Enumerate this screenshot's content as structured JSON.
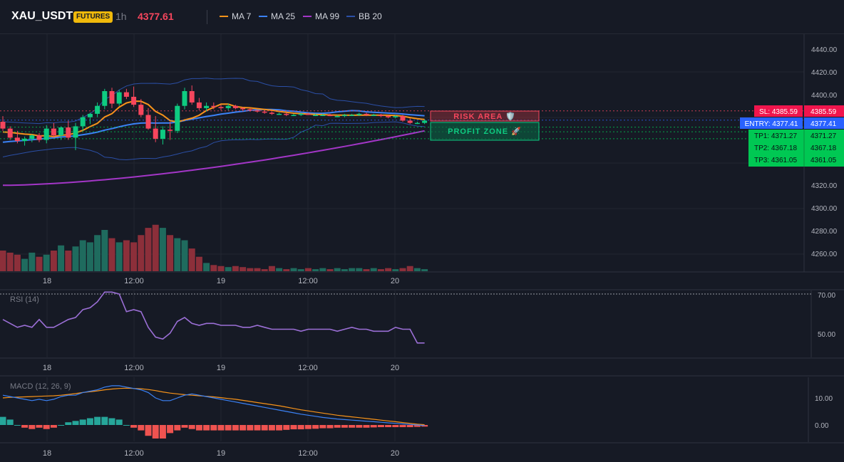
{
  "header": {
    "symbol": "XAU_USDT",
    "badge": "FUTURES",
    "interval": "1h",
    "price": "4377.61",
    "legend": [
      {
        "label": "MA 7",
        "color": "#f7931a"
      },
      {
        "label": "MA 25",
        "color": "#3b82f6"
      },
      {
        "label": "MA 99",
        "color": "#a336c7"
      },
      {
        "label": "BB 20",
        "color": "#2b4fa6"
      }
    ]
  },
  "colors": {
    "up": "#0ecb81",
    "down": "#f6465d",
    "vol_up": "#1f6b5e",
    "vol_down": "#8c2f3a",
    "ma7": "#f7931a",
    "ma25": "#3b82f6",
    "ma99": "#a336c7",
    "bb": "#2b4fa6",
    "rsi": "#9b6fd6",
    "macd": "#3b82f6",
    "signal": "#f7931a",
    "hist_up": "#26a69a",
    "hist_down": "#ef5350",
    "entry": "#2962ff",
    "tp": "#00c853"
  },
  "x_axis": {
    "tick_labels": [
      "18",
      "12:00",
      "19",
      "12:00",
      "20"
    ]
  },
  "main_axis": {
    "ticks": [
      "4440.00",
      "4420.00",
      "4400.00",
      "4320.00",
      "4300.00",
      "4280.00",
      "4260.00"
    ]
  },
  "levels": {
    "sl": {
      "label": "SL: 4385.59",
      "axis": "4385.59",
      "value": 4385.59
    },
    "entry": {
      "label": "ENTRY: 4377.41",
      "axis": "4377.41",
      "value": 4377.41
    },
    "tp1": {
      "label": "TP1: 4371.27",
      "axis": "4371.27",
      "value": 4371.27
    },
    "tp2": {
      "label": "TP2: 4367.18",
      "axis": "4367.18",
      "value": 4367.18
    },
    "tp3": {
      "label": "TP3: 4361.05",
      "axis": "4361.05",
      "value": 4361.05
    }
  },
  "zones": {
    "risk": "RISK AREA 🛡️",
    "profit": "PROFIT ZONE 🚀"
  },
  "rsi": {
    "title": "RSI (14)",
    "ticks": [
      "70.00",
      "50.00"
    ]
  },
  "macd": {
    "title": "MACD (12, 26, 9)",
    "ticks": [
      "10.00",
      "0.00"
    ]
  },
  "chart_data": [
    {
      "type": "candlestick",
      "title": "XAU_USDT",
      "ylim": [
        4245,
        4450
      ],
      "candles": [
        [
          4376,
          4381,
          4368,
          4370
        ],
        [
          4370,
          4372,
          4360,
          4362
        ],
        [
          4362,
          4368,
          4357,
          4359
        ],
        [
          4359,
          4363,
          4355,
          4361
        ],
        [
          4361,
          4365,
          4358,
          4364
        ],
        [
          4364,
          4366,
          4358,
          4360
        ],
        [
          4360,
          4373,
          4357,
          4370
        ],
        [
          4370,
          4375,
          4362,
          4364
        ],
        [
          4364,
          4372,
          4360,
          4371
        ],
        [
          4371,
          4377,
          4360,
          4362
        ],
        [
          4362,
          4375,
          4351,
          4372
        ],
        [
          4372,
          4382,
          4368,
          4380
        ],
        [
          4380,
          4384,
          4374,
          4383
        ],
        [
          4383,
          4393,
          4380,
          4390
        ],
        [
          4390,
          4405,
          4387,
          4403
        ],
        [
          4403,
          4406,
          4388,
          4392
        ],
        [
          4392,
          4404,
          4390,
          4402
        ],
        [
          4402,
          4405,
          4396,
          4398
        ],
        [
          4398,
          4407,
          4389,
          4391
        ],
        [
          4391,
          4396,
          4380,
          4382
        ],
        [
          4382,
          4388,
          4369,
          4370
        ],
        [
          4370,
          4381,
          4358,
          4361
        ],
        [
          4361,
          4372,
          4356,
          4369
        ],
        [
          4369,
          4376,
          4360,
          4368
        ],
        [
          4368,
          4392,
          4366,
          4390
        ],
        [
          4390,
          4406,
          4387,
          4403
        ],
        [
          4403,
          4408,
          4391,
          4393
        ],
        [
          4393,
          4397,
          4386,
          4388
        ],
        [
          4388,
          4393,
          4385,
          4390
        ],
        [
          4390,
          4393,
          4387,
          4389
        ],
        [
          4389,
          4391,
          4386,
          4388
        ],
        [
          4388,
          4392,
          4386,
          4390
        ],
        [
          4390,
          4391,
          4387,
          4388
        ],
        [
          4388,
          4389,
          4386,
          4387
        ],
        [
          4387,
          4388,
          4385,
          4386
        ],
        [
          4386,
          4387,
          4384,
          4385
        ],
        [
          4385,
          4386,
          4383,
          4384
        ],
        [
          4384,
          4385,
          4382,
          4383
        ],
        [
          4383,
          4384,
          4382,
          4383
        ],
        [
          4383,
          4384,
          4381,
          4382
        ],
        [
          4382,
          4383,
          4381,
          4382
        ],
        [
          4382,
          4384,
          4381,
          4383
        ],
        [
          4383,
          4384,
          4382,
          4382
        ],
        [
          4382,
          4383,
          4381,
          4382
        ],
        [
          4382,
          4383,
          4381,
          4382
        ],
        [
          4382,
          4383,
          4381,
          4381
        ],
        [
          4381,
          4382,
          4380,
          4381
        ],
        [
          4381,
          4383,
          4380,
          4382
        ],
        [
          4382,
          4383,
          4381,
          4382
        ],
        [
          4382,
          4384,
          4381,
          4383
        ],
        [
          4383,
          4384,
          4381,
          4382
        ],
        [
          4382,
          4383,
          4381,
          4382
        ],
        [
          4382,
          4383,
          4380,
          4381
        ],
        [
          4381,
          4382,
          4379,
          4380
        ],
        [
          4380,
          4382,
          4379,
          4381
        ],
        [
          4381,
          4382,
          4376,
          4377
        ],
        [
          4377,
          4379,
          4374,
          4375
        ],
        [
          4375,
          4376,
          4374,
          4375
        ],
        [
          4375,
          4378,
          4374,
          4377
        ]
      ],
      "volume": [
        20,
        18,
        16,
        12,
        18,
        14,
        16,
        20,
        25,
        20,
        24,
        30,
        28,
        35,
        40,
        32,
        28,
        30,
        28,
        35,
        42,
        45,
        42,
        35,
        32,
        30,
        22,
        14,
        8,
        6,
        5,
        4,
        5,
        4,
        3,
        3,
        2,
        5,
        3,
        2,
        3,
        2,
        3,
        2,
        3,
        2,
        3,
        2,
        3,
        3,
        2,
        3,
        2,
        3,
        2,
        3,
        5,
        3,
        2
      ]
    },
    {
      "type": "line",
      "title": "RSI (14)",
      "ylim": [
        42,
        72
      ],
      "values": [
        57,
        55,
        53,
        54,
        53,
        57,
        53,
        53,
        55,
        57,
        58,
        62,
        63,
        66,
        71,
        71,
        70,
        61,
        62,
        61,
        53,
        48,
        47,
        50,
        56,
        58,
        55,
        54,
        55,
        55,
        54,
        54,
        54,
        53,
        53,
        54,
        53,
        52,
        52,
        52,
        52,
        51,
        52,
        52,
        52,
        52,
        51,
        52,
        53,
        52,
        52,
        51,
        51,
        51,
        53,
        52,
        52,
        45,
        45
      ]
    },
    {
      "type": "bar",
      "title": "MACD (12, 26, 9)",
      "ylim": [
        -7,
        16
      ],
      "macd": [
        11,
        10.5,
        10,
        9.5,
        9,
        9.5,
        9,
        9.5,
        10.5,
        11,
        11,
        12,
        12.5,
        13,
        14,
        14.5,
        14.5,
        14,
        13.5,
        13,
        12,
        10,
        9,
        9,
        10,
        11,
        11.5,
        11,
        10.5,
        10,
        9.5,
        9,
        8.5,
        8,
        7.5,
        7,
        6.5,
        6,
        5.5,
        5,
        4.5,
        4,
        3.6,
        3.2,
        2.8,
        2.5,
        2.2,
        2,
        1.8,
        1.6,
        1.4,
        1.2,
        1,
        0.8,
        0.6,
        0.4,
        0.2,
        0,
        -0.2
      ],
      "signal": [
        10,
        10.2,
        10.3,
        10.4,
        10.5,
        10.6,
        10.7,
        10.8,
        11,
        11.3,
        11.6,
        12,
        12.3,
        12.6,
        13,
        13.3,
        13.5,
        13.6,
        13.5,
        13.4,
        13.1,
        12.7,
        12.2,
        11.8,
        11.5,
        11.2,
        11,
        10.8,
        10.6,
        10.4,
        10.1,
        9.8,
        9.5,
        9.1,
        8.7,
        8.3,
        7.9,
        7.5,
        7.1,
        6.6,
        6.1,
        5.6,
        5.2,
        4.8,
        4.4,
        4,
        3.6,
        3.3,
        3,
        2.7,
        2.4,
        2.1,
        1.8,
        1.5,
        1.2,
        0.9,
        0.6,
        0.3,
        0.1
      ],
      "histogram": [
        3,
        2,
        0,
        -1,
        -1.5,
        -1,
        -1.5,
        -1,
        0,
        1,
        1.5,
        2,
        2.5,
        3,
        3,
        2.5,
        2,
        0,
        -1,
        -2,
        -4,
        -5,
        -5,
        -3,
        -2,
        -1,
        -1.5,
        -2,
        -2,
        -2,
        -2,
        -2,
        -2,
        -2,
        -2,
        -2,
        -2,
        -2,
        -2,
        -1.8,
        -1.6,
        -1.6,
        -1.5,
        -1.4,
        -1.2,
        -1.2,
        -1,
        -1,
        -1,
        -1,
        -1,
        -0.9,
        -0.8,
        -0.8,
        -0.8,
        -0.8,
        -0.8,
        -0.7,
        -0.6
      ]
    }
  ]
}
